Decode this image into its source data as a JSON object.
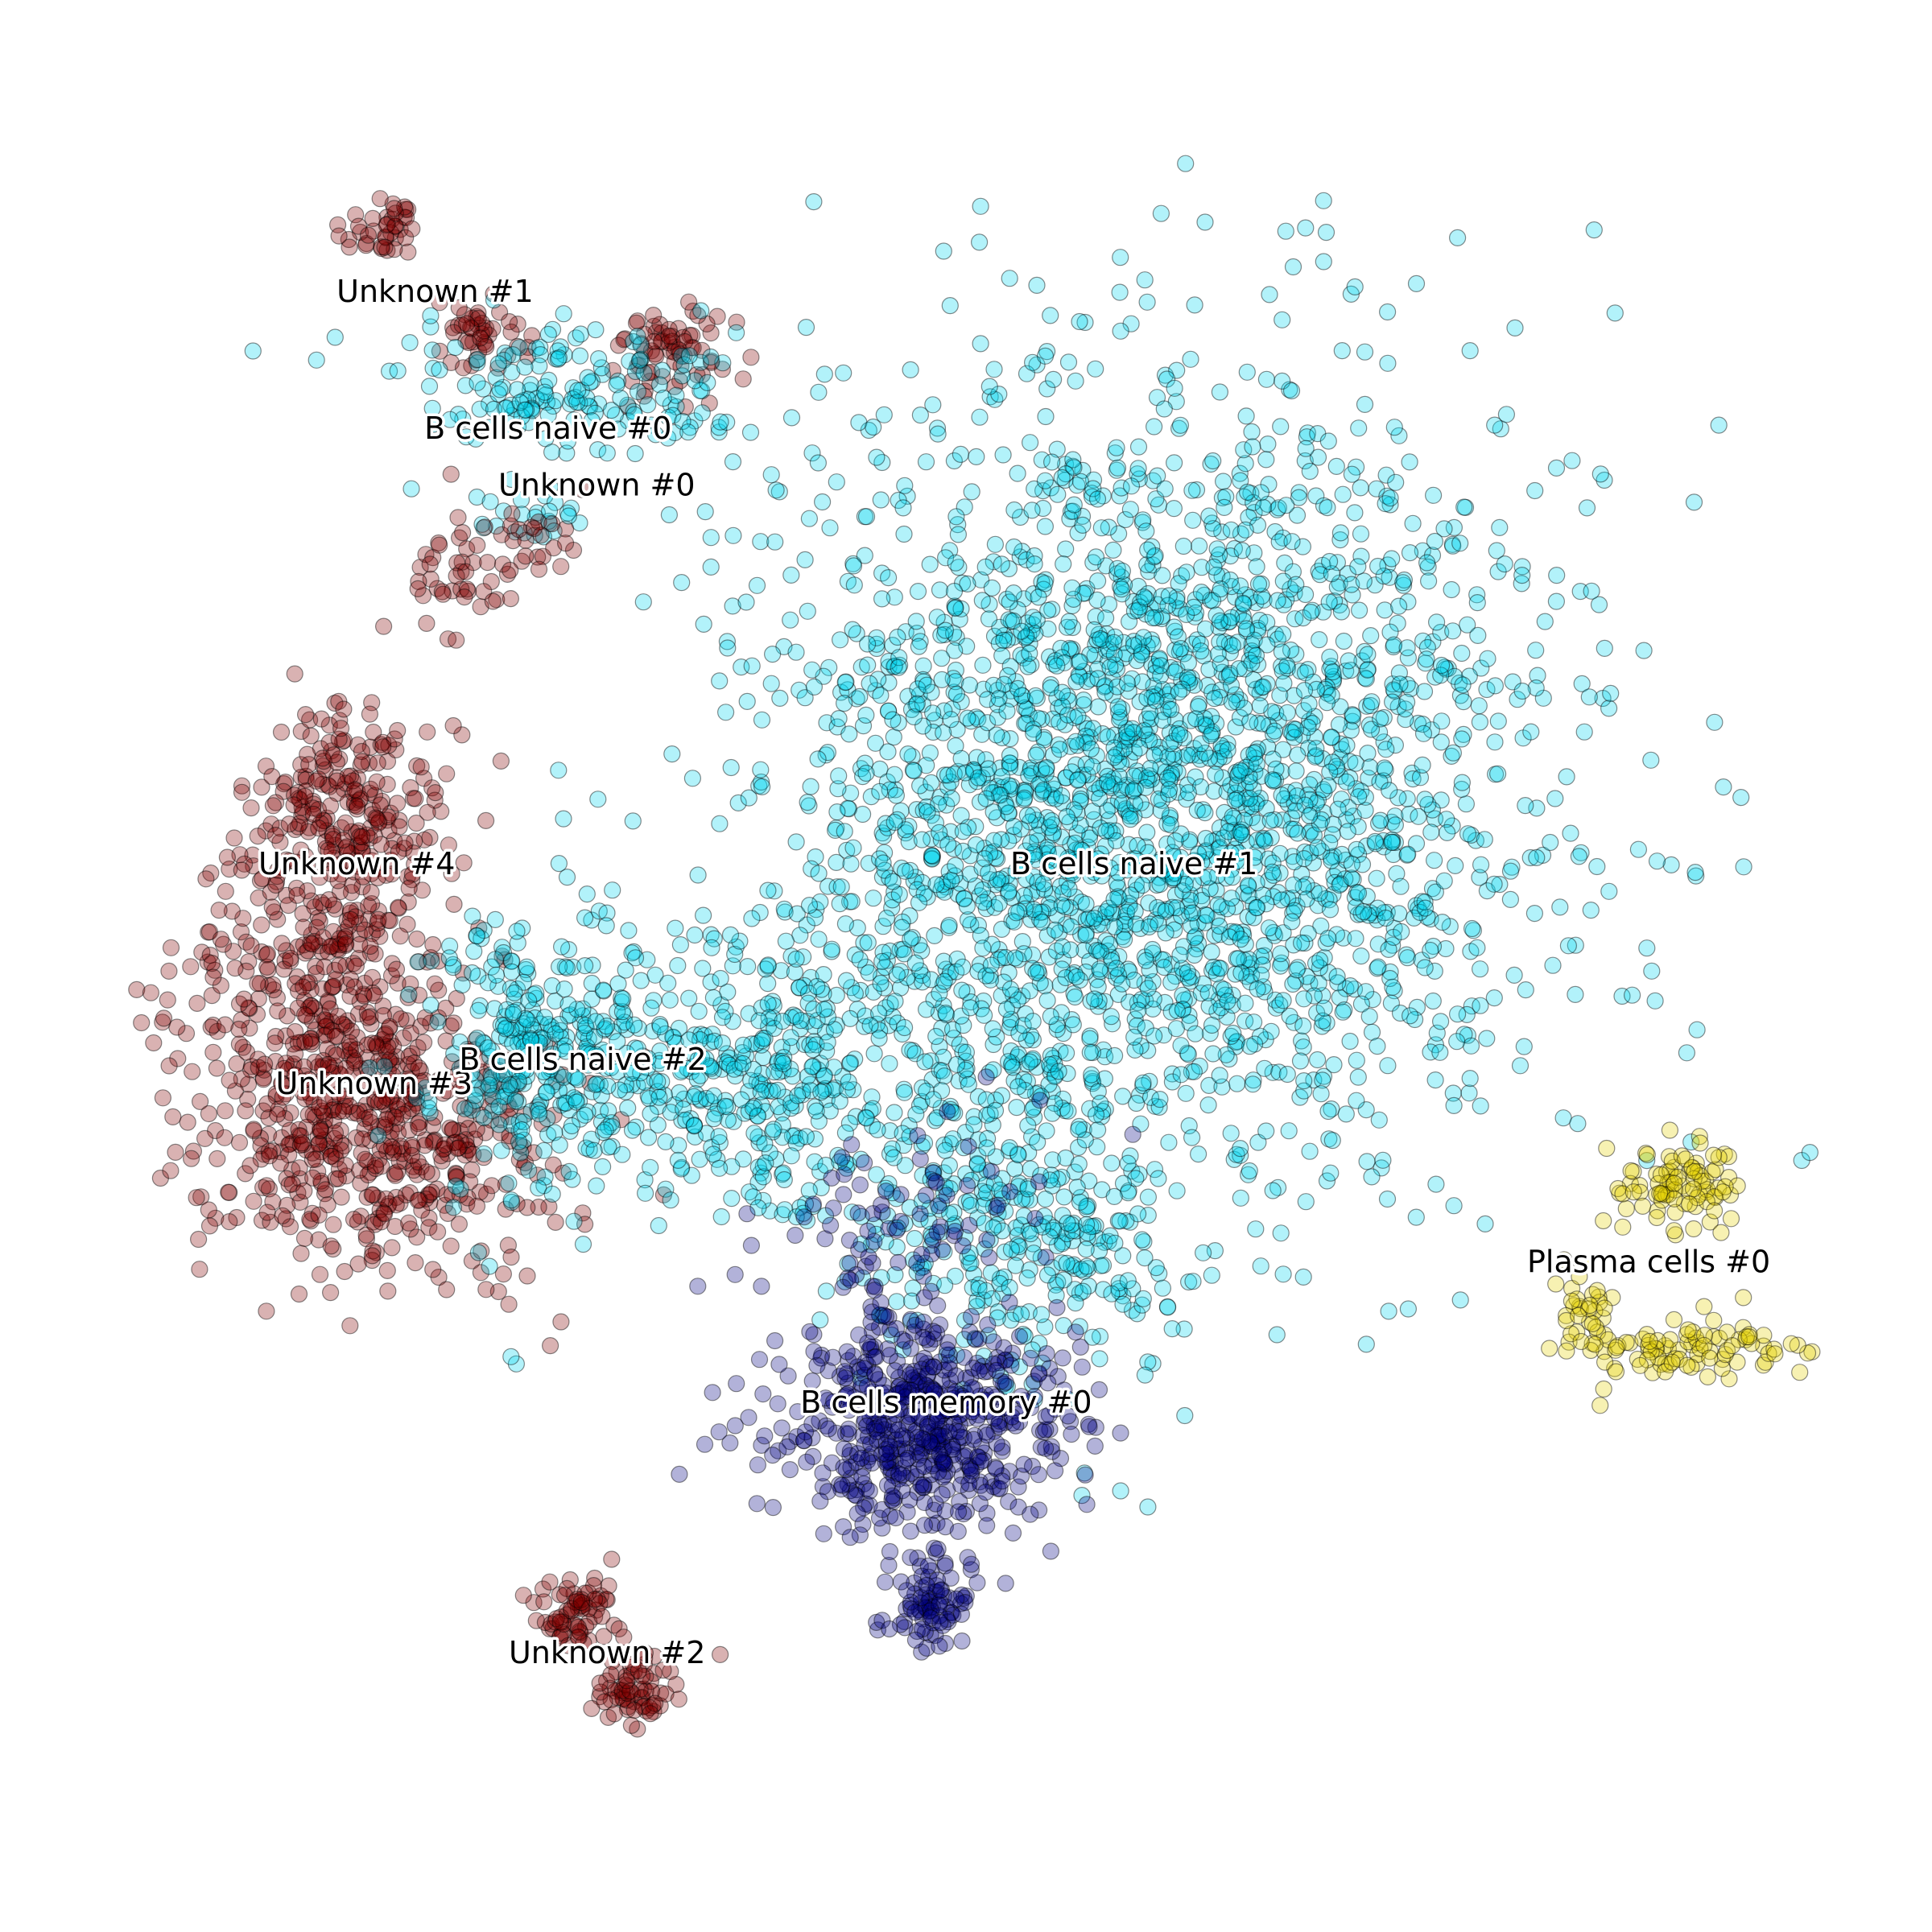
{
  "chart_data": {
    "type": "scatter",
    "title": "",
    "xlabel": "",
    "ylabel": "",
    "axes_visible": false,
    "grid": false,
    "legend": "none",
    "marker": {
      "shape": "circle",
      "edge_color": "#000000",
      "alpha": 0.3
    },
    "ranges": {
      "x": [
        0,
        1
      ],
      "y": [
        0,
        1
      ]
    },
    "series": [
      {
        "name": "Unknown #1",
        "label": "Unknown #1",
        "color": "#800000",
        "label_at": [
          0.19,
          0.89
        ],
        "blobs": [
          {
            "cx": 0.16,
            "cy": 0.925,
            "sx": 0.012,
            "sy": 0.012,
            "n": 40
          },
          {
            "cx": 0.215,
            "cy": 0.865,
            "sx": 0.014,
            "sy": 0.01,
            "n": 45
          },
          {
            "cx": 0.33,
            "cy": 0.855,
            "sx": 0.016,
            "sy": 0.015,
            "n": 70
          }
        ]
      },
      {
        "name": "B cells naive #0",
        "label": "B cells naive #0",
        "color": "#00d5f0",
        "label_at": [
          0.255,
          0.81
        ],
        "blobs": [
          {
            "cx": 0.265,
            "cy": 0.83,
            "sx": 0.045,
            "sy": 0.018,
            "n": 170
          },
          {
            "cx": 0.24,
            "cy": 0.765,
            "sx": 0.018,
            "sy": 0.008,
            "n": 25
          }
        ]
      },
      {
        "name": "Unknown #0",
        "label": "Unknown #0",
        "color": "#800000",
        "label_at": [
          0.283,
          0.777
        ],
        "blobs": [
          {
            "cx": 0.205,
            "cy": 0.725,
            "sx": 0.016,
            "sy": 0.018,
            "n": 40
          },
          {
            "cx": 0.245,
            "cy": 0.742,
            "sx": 0.012,
            "sy": 0.012,
            "n": 25
          }
        ]
      },
      {
        "name": "Unknown #4",
        "label": "Unknown #4",
        "color": "#800000",
        "label_at": [
          0.145,
          0.556
        ],
        "blobs": [
          {
            "cx": 0.14,
            "cy": 0.585,
            "sx": 0.028,
            "sy": 0.035,
            "n": 260
          },
          {
            "cx": 0.12,
            "cy": 0.49,
            "sx": 0.035,
            "sy": 0.04,
            "n": 260
          }
        ]
      },
      {
        "name": "Unknown #3",
        "label": "Unknown #3",
        "color": "#800000",
        "label_at": [
          0.155,
          0.428
        ],
        "blobs": [
          {
            "cx": 0.155,
            "cy": 0.405,
            "sx": 0.05,
            "sy": 0.045,
            "n": 560
          }
        ]
      },
      {
        "name": "B cells naive #2",
        "label": "B cells naive #2",
        "color": "#00d5f0",
        "label_at": [
          0.275,
          0.442
        ],
        "blobs": [
          {
            "cx": 0.245,
            "cy": 0.45,
            "sx": 0.03,
            "sy": 0.045,
            "n": 240
          },
          {
            "cx": 0.32,
            "cy": 0.44,
            "sx": 0.045,
            "sy": 0.035,
            "n": 220
          },
          {
            "cx": 0.38,
            "cy": 0.43,
            "sx": 0.03,
            "sy": 0.04,
            "n": 170
          }
        ]
      },
      {
        "name": "B cells naive #1",
        "label": "B cells naive #1",
        "color": "#00d5f0",
        "label_at": [
          0.592,
          0.556
        ],
        "blobs": [
          {
            "cx": 0.605,
            "cy": 0.6,
            "sx": 0.11,
            "sy": 0.115,
            "n": 2700
          },
          {
            "cx": 0.48,
            "cy": 0.45,
            "sx": 0.04,
            "sy": 0.07,
            "n": 200
          },
          {
            "cx": 0.53,
            "cy": 0.33,
            "sx": 0.05,
            "sy": 0.04,
            "n": 240
          }
        ]
      },
      {
        "name": "B cells memory #0",
        "label": "B cells memory #0",
        "color": "#000080",
        "label_at": [
          0.484,
          0.242
        ],
        "blobs": [
          {
            "cx": 0.47,
            "cy": 0.23,
            "sx": 0.042,
            "sy": 0.03,
            "n": 560
          },
          {
            "cx": 0.475,
            "cy": 0.125,
            "sx": 0.014,
            "sy": 0.016,
            "n": 90
          },
          {
            "cx": 0.46,
            "cy": 0.33,
            "sx": 0.04,
            "sy": 0.04,
            "n": 110
          }
        ]
      },
      {
        "name": "Unknown #2",
        "label": "Unknown #2",
        "color": "#800000",
        "label_at": [
          0.289,
          0.096
        ],
        "blobs": [
          {
            "cx": 0.27,
            "cy": 0.12,
            "sx": 0.012,
            "sy": 0.012,
            "n": 70
          },
          {
            "cx": 0.3,
            "cy": 0.075,
            "sx": 0.014,
            "sy": 0.01,
            "n": 70
          }
        ]
      },
      {
        "name": "Plasma cells #0",
        "label": "Plasma cells #0",
        "color": "#e6d200",
        "label_at": [
          0.888,
          0.324
        ],
        "blobs": [
          {
            "cx": 0.9,
            "cy": 0.37,
            "sx": 0.02,
            "sy": 0.012,
            "n": 90
          },
          {
            "cx": 0.9,
            "cy": 0.275,
            "sx": 0.035,
            "sy": 0.01,
            "n": 100
          },
          {
            "cx": 0.85,
            "cy": 0.3,
            "sx": 0.008,
            "sy": 0.012,
            "n": 25
          }
        ]
      }
    ]
  }
}
